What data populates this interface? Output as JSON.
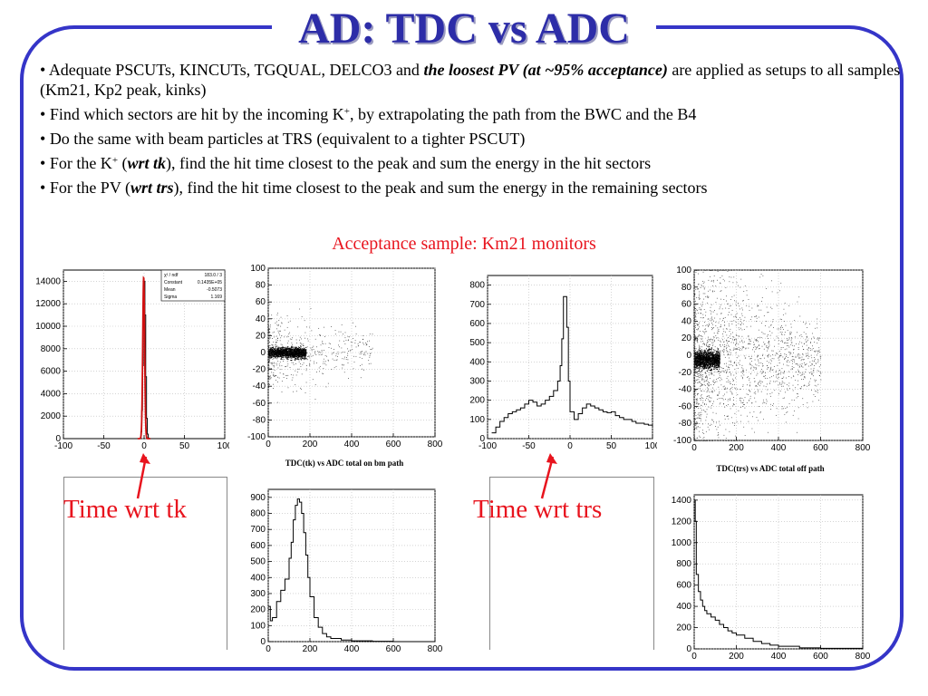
{
  "title": "AD: TDC vs ADC",
  "bullets": [
    {
      "pre": "Adequate PSCUTs, KINCUTs, TGQUAL, DELCO3 and ",
      "emph": "the loosest PV (at ~95% acceptance)",
      "post": " are applied as setups to all samples (Km21, Kp2 peak, kinks)"
    },
    {
      "pre": "Find which sectors are hit by the incoming K",
      "sup": "+",
      "post": ", by extrapolating the path from the BWC and the B4"
    },
    {
      "text": "Do the same with beam particles at TRS (equivalent to a tighter PSCUT)"
    },
    {
      "pre": "For the K",
      "sup": "+",
      "mid": " (",
      "emph": "wrt tk",
      "post": "), find the hit time closest to the peak and sum the energy in the hit sectors"
    },
    {
      "pre": "For the PV (",
      "emph": "wrt trs",
      "post": "), find the hit time closest to the peak and sum the energy in the remaining sectors"
    }
  ],
  "subtitle": "Acceptance sample: Km21 monitors",
  "labels": {
    "time_wrt_tk": "Time wrt tk",
    "time_wrt_trs": "Time wrt trs"
  },
  "captions": {
    "tk_scatter": "TDC(tk) vs ADC total on bm path",
    "trs_scatter": "TDC(trs) vs ADC total off path"
  },
  "stat_box": {
    "rows": [
      {
        "k": "χ² / ndf",
        "v": "183.0  /  3"
      },
      {
        "k": "Constant",
        "v": "0.1435E+05"
      },
      {
        "k": "Mean",
        "v": "-0.5073"
      },
      {
        "k": "Sigma",
        "v": "1.169"
      }
    ]
  },
  "colors": {
    "frame": "#3535c8",
    "title": "#2d2da8",
    "accent_red": "#e8141e",
    "fit": "#d01010"
  },
  "chart_data": [
    {
      "type": "line",
      "id": "time_tk_hist",
      "xlim": [
        -100,
        100
      ],
      "ylim": [
        0,
        15000
      ],
      "xticks": [
        -100,
        -50,
        0,
        50,
        100
      ],
      "yticks": [
        0,
        2000,
        4000,
        6000,
        8000,
        10000,
        12000,
        14000
      ],
      "yticklabels": [
        "0",
        "2000",
        "4000",
        "6000",
        "8000",
        "10000",
        "12000",
        "14000"
      ],
      "x": [
        -100,
        -6,
        -5,
        -4,
        -3,
        -2,
        -1,
        0,
        1,
        2,
        3,
        4,
        5,
        6,
        100
      ],
      "y": [
        0,
        0,
        50,
        600,
        2500,
        6500,
        12000,
        14000,
        11000,
        5500,
        1800,
        400,
        60,
        0,
        0
      ],
      "fit": {
        "constant": 14350,
        "mean": -0.5073,
        "sigma": 1.169
      }
    },
    {
      "type": "scatter",
      "id": "tdc_tk_vs_adc",
      "xlim": [
        0,
        800
      ],
      "ylim": [
        -100,
        100
      ],
      "xticks": [
        0,
        200,
        400,
        600,
        800
      ],
      "yticks": [
        -100,
        -80,
        -60,
        -40,
        -20,
        0,
        20,
        40,
        60,
        80,
        100
      ],
      "band": {
        "x_range": [
          0,
          180
        ],
        "y_center": 0,
        "y_halfwidth": 3
      }
    },
    {
      "type": "line",
      "id": "time_trs_hist",
      "xlim": [
        -100,
        100
      ],
      "ylim": [
        0,
        850
      ],
      "xticks": [
        -100,
        -50,
        0,
        50,
        100
      ],
      "yticks": [
        0,
        100,
        200,
        300,
        400,
        500,
        600,
        700,
        800
      ],
      "x": [
        -95,
        -90,
        -85,
        -80,
        -75,
        -70,
        -65,
        -60,
        -55,
        -50,
        -45,
        -40,
        -35,
        -30,
        -25,
        -20,
        -15,
        -12,
        -10,
        -8,
        -6,
        -4,
        -2,
        0,
        5,
        10,
        15,
        20,
        25,
        30,
        35,
        40,
        45,
        50,
        55,
        60,
        65,
        70,
        75,
        80,
        85,
        90,
        95,
        100
      ],
      "y": [
        30,
        60,
        90,
        110,
        130,
        140,
        150,
        160,
        180,
        200,
        190,
        170,
        180,
        200,
        220,
        250,
        300,
        380,
        520,
        740,
        740,
        580,
        300,
        140,
        100,
        130,
        160,
        180,
        170,
        160,
        150,
        140,
        135,
        140,
        120,
        110,
        100,
        100,
        90,
        80,
        80,
        75,
        70,
        60
      ]
    },
    {
      "type": "scatter",
      "id": "tdc_trs_vs_adc",
      "xlim": [
        0,
        800
      ],
      "ylim": [
        -100,
        100
      ],
      "xticks": [
        0,
        200,
        400,
        600,
        800
      ],
      "yticks": [
        -100,
        -80,
        -60,
        -40,
        -20,
        0,
        20,
        40,
        60,
        80,
        100
      ],
      "band": {
        "x_range": [
          0,
          120
        ],
        "y_center": -5,
        "y_halfwidth": 5
      }
    },
    {
      "type": "line",
      "id": "adc_tk_hist",
      "xlim": [
        0,
        800
      ],
      "ylim": [
        0,
        950
      ],
      "xticks": [
        0,
        200,
        400,
        600,
        800
      ],
      "yticks": [
        0,
        100,
        200,
        300,
        400,
        500,
        600,
        700,
        800,
        900
      ],
      "x": [
        0,
        10,
        20,
        40,
        60,
        80,
        100,
        110,
        120,
        130,
        140,
        150,
        160,
        170,
        180,
        190,
        200,
        220,
        240,
        260,
        280,
        300,
        350,
        400,
        500,
        600,
        800
      ],
      "y": [
        220,
        130,
        150,
        250,
        320,
        390,
        520,
        620,
        760,
        850,
        890,
        870,
        800,
        680,
        540,
        400,
        280,
        150,
        90,
        50,
        30,
        20,
        10,
        5,
        2,
        0,
        0
      ]
    },
    {
      "type": "line",
      "id": "adc_trs_hist",
      "xlim": [
        0,
        800
      ],
      "ylim": [
        0,
        1450
      ],
      "xticks": [
        0,
        200,
        400,
        600,
        800
      ],
      "yticks": [
        0,
        200,
        400,
        600,
        800,
        1000,
        1200,
        1400
      ],
      "x": [
        0,
        5,
        10,
        20,
        30,
        40,
        50,
        60,
        80,
        100,
        120,
        140,
        160,
        180,
        200,
        240,
        280,
        320,
        360,
        400,
        500,
        600,
        800
      ],
      "y": [
        1400,
        1200,
        700,
        540,
        460,
        400,
        360,
        330,
        300,
        270,
        230,
        200,
        170,
        150,
        130,
        100,
        70,
        50,
        35,
        25,
        10,
        5,
        2
      ]
    }
  ]
}
